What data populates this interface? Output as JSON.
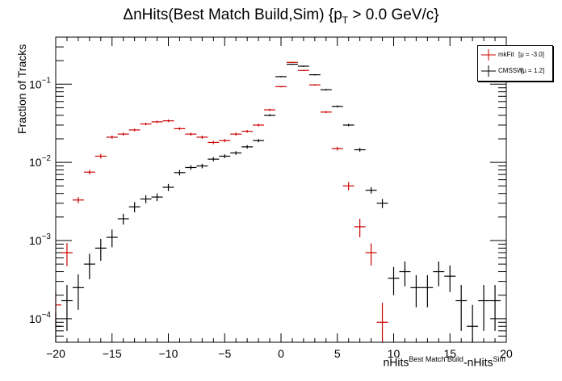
{
  "title_main": "ΔnHits(Best Match Build,Sim) {p",
  "title_sub": "T",
  "title_rest": " > 0.0 GeV/c}",
  "ylabel": "Fraction of Tracks",
  "xlabel_pre": "nHits",
  "xlabel_sup1": "Best Match Build",
  "xlabel_mid": "-nHits",
  "xlabel_sup2": "Sim",
  "legend": [
    {
      "name": "mkFit",
      "mu": "[μ = -3.0]",
      "color": "#cc0000"
    },
    {
      "name": "CMSSW",
      "mu": "[μ =  1.2]",
      "color": "#000000"
    }
  ],
  "chart_data": {
    "type": "scatter",
    "xlim": [
      -20,
      20
    ],
    "ylim": [
      5e-05,
      0.4
    ],
    "yscale": "log",
    "x_ticks": [
      "−20",
      "−15",
      "−10",
      "−5",
      "0",
      "5",
      "10",
      "15",
      "20"
    ],
    "y_ticks": [
      {
        "base": "10",
        "exp": "−4"
      },
      {
        "base": "10",
        "exp": "−3"
      },
      {
        "base": "10",
        "exp": "−2"
      },
      {
        "base": "10",
        "exp": "−1"
      }
    ],
    "series": [
      {
        "name": "mkFit",
        "color": "#cc0000",
        "x": [
          -20,
          -19,
          -18,
          -17,
          -16,
          -15,
          -14,
          -13,
          -12,
          -11,
          -10,
          -9,
          -8,
          -7,
          -6,
          -5,
          -4,
          -3,
          -2,
          -1,
          0,
          1,
          2,
          3,
          4,
          5,
          6,
          7,
          8,
          9
        ],
        "y": [
          0.00015,
          0.0007,
          0.0033,
          0.0075,
          0.012,
          0.021,
          0.023,
          0.026,
          0.031,
          0.033,
          0.034,
          0.027,
          0.023,
          0.021,
          0.018,
          0.019,
          0.023,
          0.025,
          0.03,
          0.047,
          0.093,
          0.19,
          0.15,
          0.098,
          0.044,
          0.015,
          0.005,
          0.0015,
          0.0007,
          9e-05
        ],
        "yerr": [
          7e-05,
          0.00023,
          0.0003,
          0.0005,
          0.0008,
          0.001,
          0.001,
          0.001,
          0.0012,
          0.0012,
          0.0013,
          0.0011,
          0.001,
          0.001,
          0.0009,
          0.0009,
          0.001,
          0.001,
          0.0012,
          0.0015,
          0.002,
          0.003,
          0.0025,
          0.002,
          0.0013,
          0.0008,
          0.0006,
          0.0004,
          0.00022,
          7e-05
        ]
      },
      {
        "name": "CMSSW",
        "color": "#000000",
        "x": [
          -20,
          -19,
          -18,
          -17,
          -16,
          -15,
          -14,
          -13,
          -12,
          -11,
          -10,
          -9,
          -8,
          -7,
          -6,
          -5,
          -4,
          -3,
          -2,
          -1,
          0,
          1,
          2,
          3,
          4,
          5,
          6,
          7,
          8,
          9,
          10,
          11,
          12,
          13,
          14,
          15,
          16,
          17,
          18,
          19
        ],
        "y": [
          8e-05,
          0.00017,
          0.00025,
          0.0005,
          0.0008,
          0.0011,
          0.0019,
          0.0027,
          0.0034,
          0.0036,
          0.0048,
          0.0074,
          0.0086,
          0.009,
          0.011,
          0.012,
          0.0132,
          0.0158,
          0.019,
          0.04,
          0.125,
          0.18,
          0.17,
          0.132,
          0.085,
          0.052,
          0.03,
          0.0145,
          0.0044,
          0.003,
          0.00033,
          0.0004,
          0.00025,
          0.00025,
          0.0004,
          0.00035,
          0.00017,
          8e-05,
          0.00017,
          0.00017
        ],
        "yerr": [
          4e-05,
          0.0001,
          0.00012,
          0.00018,
          0.00025,
          0.00028,
          0.0003,
          0.0004,
          0.0004,
          0.0004,
          0.0005,
          0.0006,
          0.0006,
          0.0006,
          0.0007,
          0.0007,
          0.0007,
          0.0008,
          0.0009,
          0.0012,
          0.0025,
          0.003,
          0.003,
          0.0025,
          0.002,
          0.0015,
          0.0011,
          0.0008,
          0.0004,
          0.0004,
          0.00013,
          0.00014,
          0.00011,
          0.00011,
          0.00014,
          0.00013,
          0.0001,
          7e-05,
          0.0001,
          0.0001
        ]
      }
    ]
  }
}
